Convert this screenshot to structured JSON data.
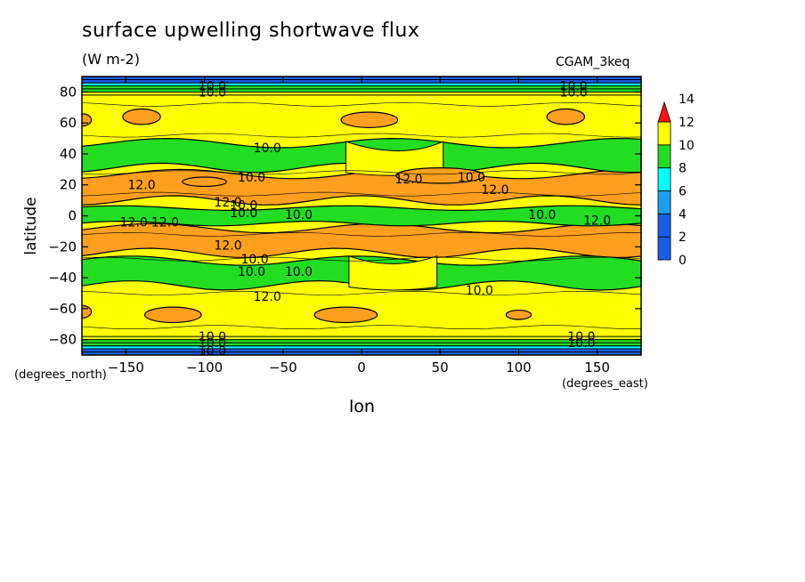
{
  "chart_data": {
    "type": "heatmap",
    "title": "surface upwelling shortwave flux",
    "units": "(W m-2)",
    "run_label": "CGAM_3keq",
    "xlabel": "lon",
    "ylabel": "latitude",
    "x_units_label": "(degrees_east)",
    "y_units_label": "(degrees_north)",
    "xlim": [
      -178,
      178
    ],
    "ylim": [
      -90,
      90
    ],
    "x_ticks": [
      -150,
      -100,
      -50,
      0,
      50,
      100,
      150
    ],
    "y_ticks": [
      80,
      60,
      40,
      20,
      0,
      -20,
      -40,
      -60,
      -80
    ],
    "colorbar": {
      "levels": [
        0,
        2,
        4,
        6,
        8,
        10,
        12,
        14
      ],
      "tick_labels": [
        "0",
        "2",
        "4",
        "6",
        "8",
        "10",
        "12",
        "14"
      ],
      "colors": [
        "#1a5ee8",
        "#1a5ee8",
        "#1e9ef0",
        "#00ffff",
        "#22dd22",
        "#ffff00",
        "#ff9f1e",
        "#ff1111"
      ],
      "extend": "max"
    },
    "bands": [
      {
        "lat_from": 90,
        "lat_to": 84,
        "level": "0-6"
      },
      {
        "lat_from": 84,
        "lat_to": 76,
        "level": "8-10"
      },
      {
        "lat_from": 76,
        "lat_to": 48,
        "level": "10-12"
      },
      {
        "lat_from": 48,
        "lat_to": 30,
        "level": "8-10"
      },
      {
        "lat_from": 30,
        "lat_to": 8,
        "level": "10-12 with 12-14 patches"
      },
      {
        "lat_from": 8,
        "lat_to": -6,
        "level": "8-10"
      },
      {
        "lat_from": -6,
        "lat_to": -26,
        "level": "10-12 with 12-14 patches"
      },
      {
        "lat_from": -26,
        "lat_to": -48,
        "level": "8-10"
      },
      {
        "lat_from": -48,
        "lat_to": -76,
        "level": "10-12"
      },
      {
        "lat_from": -76,
        "lat_to": -84,
        "level": "8-10"
      },
      {
        "lat_from": -84,
        "lat_to": -90,
        "level": "0-6"
      }
    ],
    "contour_labels": [
      "10.0",
      "10.0",
      "10.0",
      "10.0",
      "10.0",
      "10.0",
      "10.0",
      "10.0",
      "10.0",
      "10.0",
      "10.0",
      "12.0",
      "12.0",
      "12.0",
      "12.0",
      "12.0",
      "12.0",
      "12.0",
      "12.0",
      "12.0",
      "10.0",
      "10.0",
      "10.0",
      "10.0",
      "10.0",
      "10.0",
      "10.0",
      "10.0",
      "10.0"
    ],
    "legend": "right"
  }
}
